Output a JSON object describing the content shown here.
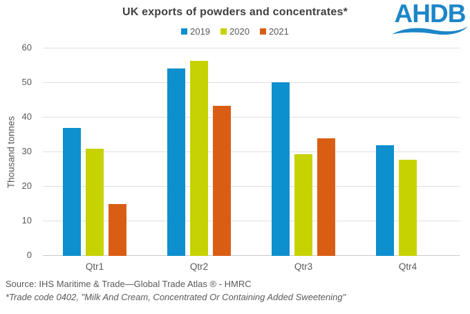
{
  "logo": {
    "text": "AHDB",
    "color": "#1C86C8"
  },
  "footer": {
    "source": "Source: IHS Maritime & Trade—Global Trade Atlas ® - HMRC",
    "footnote": "*Trade code 0402, \"Milk And Cream, Concentrated Or Containing Added Sweetening\""
  },
  "chart_data": {
    "type": "bar",
    "title": "UK exports of powders and concentrates*",
    "categories": [
      "Qtr1",
      "Qtr2",
      "Qtr3",
      "Qtr4"
    ],
    "series": [
      {
        "name": "2019",
        "color": "#0E8FCE",
        "values": [
          37,
          54.2,
          50.2,
          32
        ]
      },
      {
        "name": "2020",
        "color": "#C7D203",
        "values": [
          31,
          56.5,
          29.5,
          27.8
        ]
      },
      {
        "name": "2021",
        "color": "#D95E13",
        "values": [
          15,
          43.5,
          34,
          null
        ]
      }
    ],
    "xlabel": "",
    "ylabel": "Thousand tonnes",
    "ylim": [
      0,
      60
    ],
    "ytick_step": 10,
    "grid": true,
    "legend_position": "top"
  }
}
